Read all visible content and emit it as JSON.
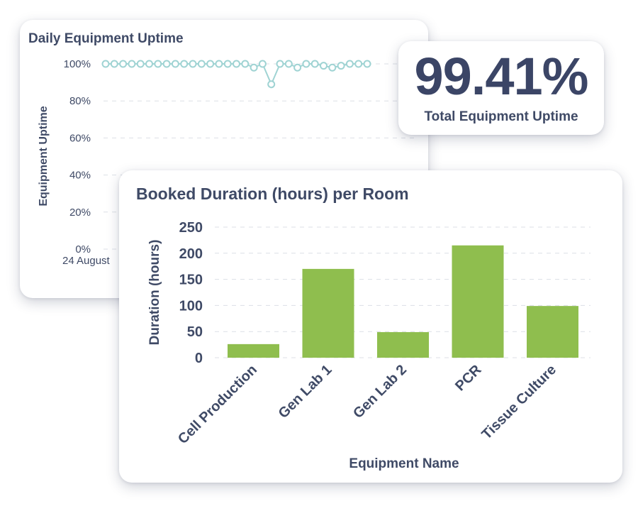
{
  "uptime_chart": {
    "title": "Daily Equipment Uptime",
    "ylabel": "Equipment Uptime",
    "x_first_label": "24 August",
    "color": "#9fd3d3"
  },
  "kpi": {
    "value": "99.41%",
    "label": "Total Equipment Uptime"
  },
  "bar_chart": {
    "title": "Booked Duration (hours) per Room",
    "color": "#8fbe4e"
  },
  "chart_data": [
    {
      "type": "line",
      "title": "Daily Equipment Uptime",
      "xlabel": "",
      "ylabel": "Equipment Uptime",
      "x_first_label": "24 August",
      "y_ticks": [
        "0%",
        "20%",
        "40%",
        "60%",
        "80%",
        "100%"
      ],
      "ylim": [
        0,
        100
      ],
      "grid": true,
      "values": [
        100,
        100,
        100,
        100,
        100,
        100,
        100,
        100,
        100,
        100,
        100,
        100,
        100,
        100,
        100,
        100,
        100,
        98,
        100,
        89,
        100,
        100,
        98,
        100,
        100,
        99,
        98,
        99,
        100,
        100,
        100
      ]
    },
    {
      "type": "bar",
      "title": "Booked Duration (hours) per Room",
      "xlabel": "Equipment Name",
      "ylabel": "Duration (hours)",
      "categories": [
        "Cell Production",
        "Gen Lab 1",
        "Gen Lab 2",
        "PCR",
        "Tissue Culture"
      ],
      "values": [
        26,
        170,
        49,
        215,
        99
      ],
      "y_ticks": [
        0,
        50,
        100,
        150,
        200,
        250
      ],
      "ylim": [
        0,
        250
      ],
      "grid": true
    }
  ]
}
